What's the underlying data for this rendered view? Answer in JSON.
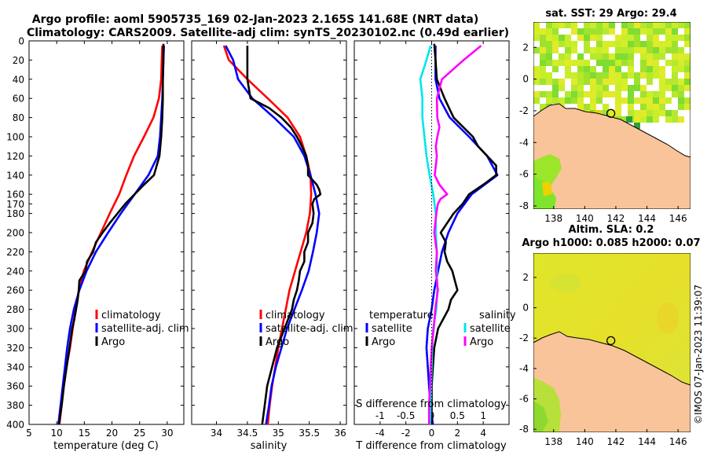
{
  "title_line1": "Argo profile: aoml 5905735_169 02-Jan-2023 2.165S 141.68E (NRT data)",
  "title_line2": "Climatology: CARS2009. Satellite-adj clim: synTS_20230102.nc (0.49d earlier)",
  "credit": "©IMOS 07-Jan-2023 11:39:07",
  "colors": {
    "climatology": "#ff0000",
    "satellite": "#0000ff",
    "argo": "#000000",
    "sal_satellite": "#00e5ee",
    "sal_argo": "#ff00ff",
    "land": "#f9c49a"
  },
  "depth_ticks": [
    0,
    20,
    40,
    60,
    80,
    100,
    120,
    140,
    160,
    170,
    180,
    200,
    220,
    240,
    260,
    280,
    300,
    320,
    340,
    360,
    380,
    400
  ],
  "chart_data": [
    {
      "type": "line",
      "name": "temperature",
      "xlabel": "temperature (deg C)",
      "ylabel": "depth",
      "xlim": [
        5,
        33
      ],
      "ylim": [
        0,
        400
      ],
      "x_ticks": [
        5,
        10,
        15,
        20,
        25,
        30
      ],
      "legend": [
        "climatology",
        "satellite-adj. clim",
        "Argo"
      ],
      "series": [
        {
          "name": "climatology",
          "depth": [
            5,
            20,
            40,
            60,
            80,
            100,
            120,
            140,
            160,
            180,
            200,
            220,
            240,
            260,
            280,
            300,
            320,
            340,
            360,
            380,
            400
          ],
          "value": [
            29.1,
            29.0,
            28.9,
            28.5,
            27.5,
            25.8,
            24.0,
            22.6,
            21.3,
            19.6,
            18.0,
            16.4,
            14.9,
            14.0,
            13.4,
            12.9,
            12.4,
            11.8,
            11.3,
            10.9,
            10.5
          ]
        },
        {
          "name": "satellite-adj. clim",
          "depth": [
            5,
            20,
            40,
            60,
            80,
            100,
            120,
            140,
            160,
            180,
            200,
            220,
            240,
            260,
            280,
            300,
            320,
            340,
            360,
            380,
            400
          ],
          "value": [
            29.4,
            29.3,
            29.2,
            29.1,
            28.9,
            28.7,
            28.3,
            26.6,
            24.1,
            21.6,
            19.3,
            17.1,
            15.4,
            14.1,
            13.1,
            12.4,
            11.9,
            11.5,
            11.1,
            10.7,
            10.3
          ]
        },
        {
          "name": "Argo",
          "depth": [
            3,
            20,
            40,
            60,
            80,
            100,
            120,
            140,
            150,
            160,
            170,
            180,
            190,
            200,
            210,
            220,
            230,
            240,
            250,
            260,
            270,
            280,
            290,
            300,
            320,
            340,
            360,
            380,
            400
          ],
          "value": [
            29.3,
            29.3,
            29.2,
            29.2,
            29.1,
            28.9,
            28.6,
            27.6,
            25.8,
            24.1,
            22.4,
            21.0,
            19.6,
            18.3,
            17.1,
            16.6,
            15.5,
            15.2,
            14.1,
            14.0,
            13.8,
            13.5,
            13.2,
            12.8,
            12.3,
            11.8,
            11.3,
            10.9,
            10.4
          ]
        }
      ]
    },
    {
      "type": "line",
      "name": "salinity",
      "xlabel": "salinity",
      "ylabel": "depth",
      "xlim": [
        33.6,
        36.1
      ],
      "ylim": [
        0,
        400
      ],
      "x_ticks": [
        34,
        34.5,
        35,
        35.5,
        36
      ],
      "legend": [
        "climatology",
        "satellite-adj. clim",
        "Argo"
      ],
      "series": [
        {
          "name": "climatology",
          "depth": [
            5,
            20,
            40,
            60,
            80,
            100,
            120,
            140,
            160,
            180,
            200,
            220,
            240,
            260,
            280,
            300,
            320,
            340,
            360,
            380,
            400
          ],
          "value": [
            34.12,
            34.2,
            34.5,
            34.83,
            35.15,
            35.35,
            35.45,
            35.52,
            35.53,
            35.51,
            35.45,
            35.36,
            35.27,
            35.18,
            35.12,
            35.06,
            35.0,
            34.95,
            34.9,
            34.86,
            34.83
          ]
        },
        {
          "name": "satellite-adj. clim",
          "depth": [
            5,
            20,
            40,
            60,
            80,
            100,
            120,
            140,
            160,
            180,
            200,
            220,
            240,
            260,
            280,
            300,
            320,
            340,
            360,
            380,
            400
          ],
          "value": [
            34.15,
            34.27,
            34.35,
            34.58,
            34.93,
            35.25,
            35.42,
            35.52,
            35.6,
            35.66,
            35.62,
            35.56,
            35.49,
            35.38,
            35.26,
            35.14,
            35.05,
            34.96,
            34.89,
            34.85,
            34.8
          ]
        },
        {
          "name": "Argo",
          "depth": [
            5,
            20,
            40,
            60,
            70,
            80,
            90,
            100,
            110,
            120,
            130,
            140,
            145,
            150,
            155,
            160,
            165,
            170,
            180,
            190,
            200,
            210,
            220,
            230,
            240,
            250,
            260,
            270,
            280,
            290,
            300,
            320,
            340,
            360,
            380,
            400
          ],
          "value": [
            34.5,
            34.5,
            34.5,
            34.55,
            34.85,
            35.05,
            35.2,
            35.3,
            35.38,
            35.45,
            35.48,
            35.48,
            35.55,
            35.62,
            35.66,
            35.68,
            35.58,
            35.55,
            35.57,
            35.55,
            35.48,
            35.48,
            35.42,
            35.42,
            35.35,
            35.33,
            35.3,
            35.25,
            35.22,
            35.16,
            35.1,
            34.98,
            34.9,
            34.82,
            34.78,
            34.74
          ]
        }
      ]
    },
    {
      "type": "line",
      "name": "differences",
      "xlabel": "T difference from climatology",
      "xlabel_top": "S difference from climatology",
      "xlim": [
        -6,
        6
      ],
      "ylim": [
        0,
        400
      ],
      "x_ticks": [
        -4,
        -2,
        0,
        2,
        4
      ],
      "x_ticks_top": [
        -1,
        -0.5,
        0,
        0.5,
        1
      ],
      "legend_titles": [
        "temperature",
        "salinity"
      ],
      "legend": [
        "satellite",
        "Argo",
        "satellite",
        "Argo"
      ],
      "series": [
        {
          "name": "temperature satellite",
          "depth": [
            5,
            20,
            40,
            60,
            80,
            100,
            120,
            140,
            160,
            180,
            200,
            220,
            240,
            260,
            280,
            300,
            320,
            340,
            360,
            380,
            400
          ],
          "value": [
            0.3,
            0.3,
            0.3,
            0.6,
            1.4,
            2.9,
            4.3,
            5.1,
            3.1,
            2.0,
            1.3,
            0.8,
            0.5,
            0.2,
            0.0,
            -0.3,
            -0.4,
            -0.3,
            -0.2,
            -0.1,
            0.1
          ]
        },
        {
          "name": "temperature Argo",
          "depth": [
            3,
            20,
            40,
            60,
            80,
            100,
            110,
            120,
            130,
            140,
            150,
            160,
            170,
            180,
            190,
            200,
            210,
            220,
            230,
            240,
            250,
            260,
            270,
            280,
            300,
            320,
            340,
            360,
            380,
            400
          ],
          "value": [
            0.2,
            0.3,
            0.4,
            1.0,
            1.7,
            3.2,
            3.6,
            4.3,
            5.0,
            5.0,
            4.0,
            2.9,
            2.4,
            1.7,
            1.2,
            0.7,
            1.1,
            1.0,
            1.2,
            1.6,
            1.8,
            2.0,
            1.5,
            1.3,
            0.5,
            0.2,
            0.1,
            0.0,
            0.0,
            0.0
          ]
        },
        {
          "name": "salinity satellite",
          "depth": [
            5,
            20,
            40,
            60,
            80,
            100,
            120,
            140,
            160,
            180,
            200,
            220,
            240,
            260,
            280,
            300,
            320,
            340,
            360,
            380,
            400
          ],
          "value": [
            -0.02,
            -0.1,
            -0.22,
            -0.18,
            -0.18,
            -0.14,
            -0.1,
            -0.04,
            0.03,
            0.08,
            0.08,
            0.1,
            0.1,
            0.11,
            0.09,
            0.03,
            0.01,
            0.0,
            -0.01,
            -0.02,
            -0.03
          ]
        },
        {
          "name": "salinity Argo",
          "depth": [
            5,
            20,
            40,
            60,
            80,
            90,
            100,
            110,
            120,
            130,
            140,
            150,
            160,
            165,
            170,
            180,
            200,
            220,
            240,
            260,
            280,
            300,
            320,
            340,
            360,
            380,
            400
          ],
          "value": [
            0.96,
            0.62,
            0.2,
            0.1,
            0.11,
            0.15,
            0.11,
            0.08,
            0.1,
            0.08,
            0.06,
            0.15,
            0.3,
            0.17,
            0.12,
            0.09,
            0.05,
            0.1,
            0.08,
            0.12,
            0.07,
            0.04,
            0.0,
            -0.02,
            -0.03,
            -0.05,
            -0.05
          ]
        }
      ]
    },
    {
      "type": "heatmap",
      "name": "sst_map",
      "title": "sat. SST: 29 Argo: 29.4",
      "x_ticks": [
        138,
        140,
        142,
        144,
        146
      ],
      "y_ticks": [
        2,
        0,
        -2,
        -4,
        -6,
        -8
      ],
      "xlim": [
        136.7,
        146.8
      ],
      "ylim": [
        -8.2,
        3.6
      ],
      "profile_location": {
        "lon": 141.68,
        "lat": -2.165
      }
    },
    {
      "type": "heatmap",
      "name": "sla_map",
      "title": "Altim. SLA: 0.2",
      "subtitle": "Argo h1000: 0.085 h2000: 0.07",
      "x_ticks": [
        138,
        140,
        142,
        144,
        146
      ],
      "y_ticks": [
        2,
        0,
        -2,
        -4,
        -6,
        -8
      ],
      "xlim": [
        136.7,
        146.8
      ],
      "ylim": [
        -8.2,
        3.6
      ],
      "profile_location": {
        "lon": 141.68,
        "lat": -2.165
      }
    }
  ]
}
